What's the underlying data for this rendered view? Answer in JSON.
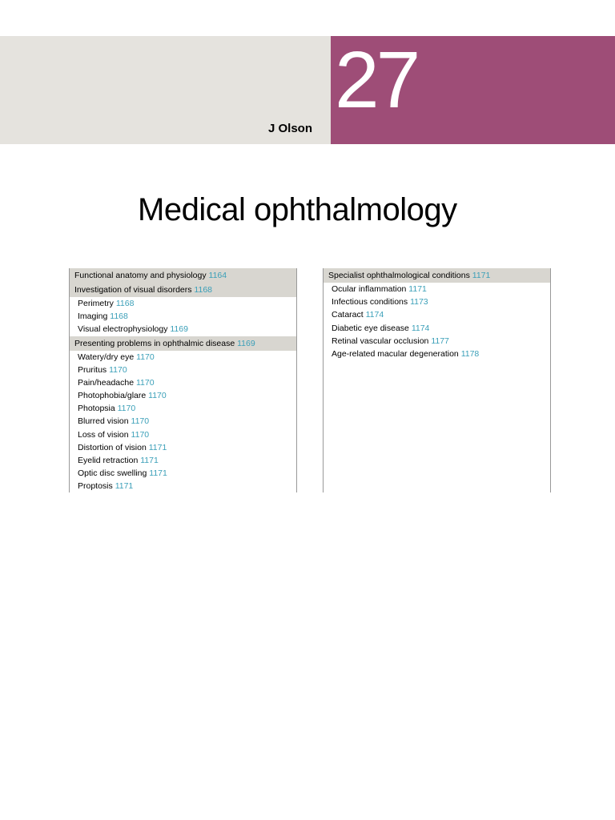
{
  "header": {
    "author": "J Olson",
    "chapter_number": "27",
    "title": "Medical ophthalmology",
    "banner_bg": "#e5e3de",
    "chapter_box_bg": "#9e4d77",
    "chapter_number_color": "#ffffff"
  },
  "toc": {
    "page_color": "#3a9fb8",
    "header_bg": "#d8d6d0",
    "columns": [
      {
        "sections": [
          {
            "type": "header",
            "text": "Functional anatomy and physiology",
            "page": "1164"
          },
          {
            "type": "header",
            "text": "Investigation of visual disorders",
            "page": "1168"
          },
          {
            "type": "item",
            "text": "Perimetry",
            "page": "1168"
          },
          {
            "type": "item",
            "text": "Imaging",
            "page": "1168"
          },
          {
            "type": "item",
            "text": "Visual electrophysiology",
            "page": "1169"
          },
          {
            "type": "header",
            "text": "Presenting problems in ophthalmic disease",
            "page": "1169"
          },
          {
            "type": "item",
            "text": "Watery/dry eye",
            "page": "1170"
          },
          {
            "type": "item",
            "text": "Pruritus",
            "page": "1170"
          },
          {
            "type": "item",
            "text": "Pain/headache",
            "page": "1170"
          },
          {
            "type": "item",
            "text": "Photophobia/glare",
            "page": "1170"
          },
          {
            "type": "item",
            "text": "Photopsia",
            "page": "1170"
          },
          {
            "type": "item",
            "text": "Blurred vision",
            "page": "1170"
          },
          {
            "type": "item",
            "text": "Loss of vision",
            "page": "1170"
          },
          {
            "type": "item",
            "text": "Distortion of vision",
            "page": "1171"
          },
          {
            "type": "item",
            "text": "Eyelid retraction",
            "page": "1171"
          },
          {
            "type": "item",
            "text": "Optic disc swelling",
            "page": "1171"
          },
          {
            "type": "item",
            "text": "Proptosis",
            "page": "1171"
          }
        ]
      },
      {
        "sections": [
          {
            "type": "header",
            "text": "Specialist ophthalmological conditions",
            "page": "1171"
          },
          {
            "type": "item",
            "text": "Ocular inflammation",
            "page": "1171"
          },
          {
            "type": "item",
            "text": "Infectious conditions",
            "page": "1173"
          },
          {
            "type": "item",
            "text": "Cataract",
            "page": "1174"
          },
          {
            "type": "item",
            "text": "Diabetic eye disease",
            "page": "1174"
          },
          {
            "type": "item",
            "text": "Retinal vascular occlusion",
            "page": "1177"
          },
          {
            "type": "item",
            "text": "Age-related macular degeneration",
            "page": "1178"
          }
        ]
      }
    ]
  }
}
